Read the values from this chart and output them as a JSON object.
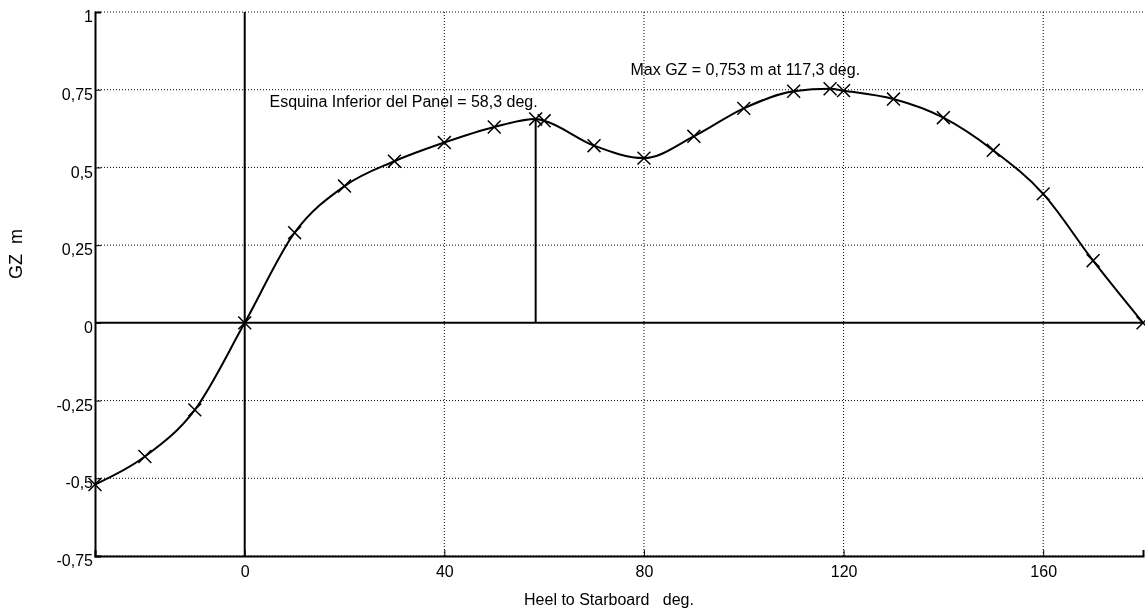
{
  "chart_data": {
    "type": "line",
    "xlabel": "Heel to Starboard   deg.",
    "ylabel": "GZ  m",
    "xlim": [
      -30,
      180
    ],
    "xticks": [
      0,
      40,
      80,
      120,
      160
    ],
    "ylim": [
      -0.75,
      1
    ],
    "yticks": [
      {
        "value": -0.75,
        "label": "-0,75"
      },
      {
        "value": -0.5,
        "label": "-0,5"
      },
      {
        "value": -0.25,
        "label": "-0,25"
      },
      0,
      {
        "value": 0.25,
        "label": "0,25"
      },
      {
        "value": 0.5,
        "label": "0,5"
      },
      {
        "value": 0.75,
        "label": "0,75"
      },
      1
    ],
    "grid": true,
    "marker": "cross",
    "line_style": "solid",
    "series": [
      {
        "color": "#000000",
        "x": [
          -30,
          -20,
          -10,
          0,
          10,
          20,
          30,
          40,
          50,
          58.3,
          60,
          70,
          80,
          90,
          100,
          110,
          117.3,
          120,
          130,
          140,
          150,
          160,
          170,
          180
        ],
        "values": [
          -0.52,
          -0.43,
          -0.28,
          0,
          0.29,
          0.44,
          0.52,
          0.58,
          0.63,
          0.656,
          0.65,
          0.57,
          0.53,
          0.6,
          0.69,
          0.745,
          0.753,
          0.747,
          0.72,
          0.66,
          0.555,
          0.415,
          0.2,
          0
        ]
      }
    ],
    "ref_lines": [
      {
        "axis": "x",
        "value": 58.3,
        "label": "Esquina Inferior del Panel = 58,3 deg."
      }
    ],
    "annotations": [
      {
        "text": "Max GZ = 0,753 m at 117,3 deg.",
        "x": 117.3,
        "y": 0.753
      }
    ]
  }
}
